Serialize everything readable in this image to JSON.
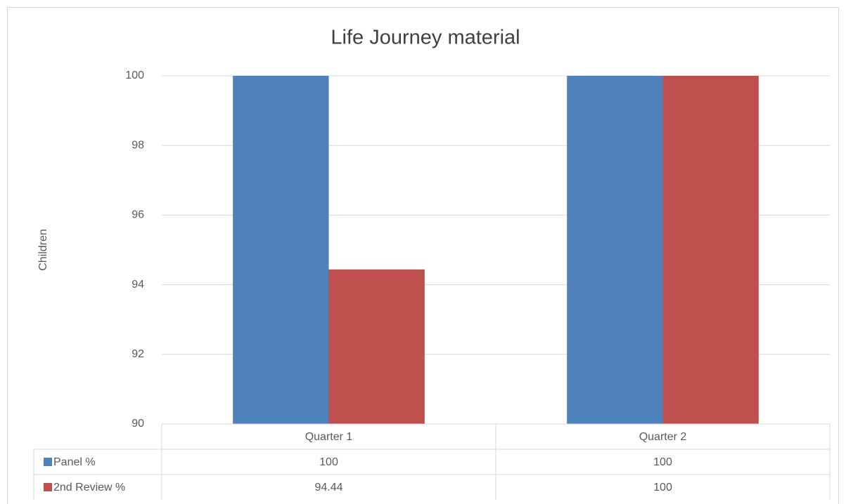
{
  "chart_data": {
    "type": "bar",
    "title": "Life Journey material",
    "y_label": "Children",
    "categories": [
      "Quarter 1",
      "Quarter 2"
    ],
    "series": [
      {
        "name": "Panel %",
        "color": "#4f81bd",
        "values": [
          100,
          100
        ]
      },
      {
        "name": "2nd Review %",
        "color": "#c0504d",
        "values": [
          94.44,
          100
        ]
      }
    ],
    "ylim": [
      90,
      100
    ],
    "yticks": [
      90,
      92,
      94,
      96,
      98,
      100
    ],
    "grid": true,
    "data_table": true
  }
}
